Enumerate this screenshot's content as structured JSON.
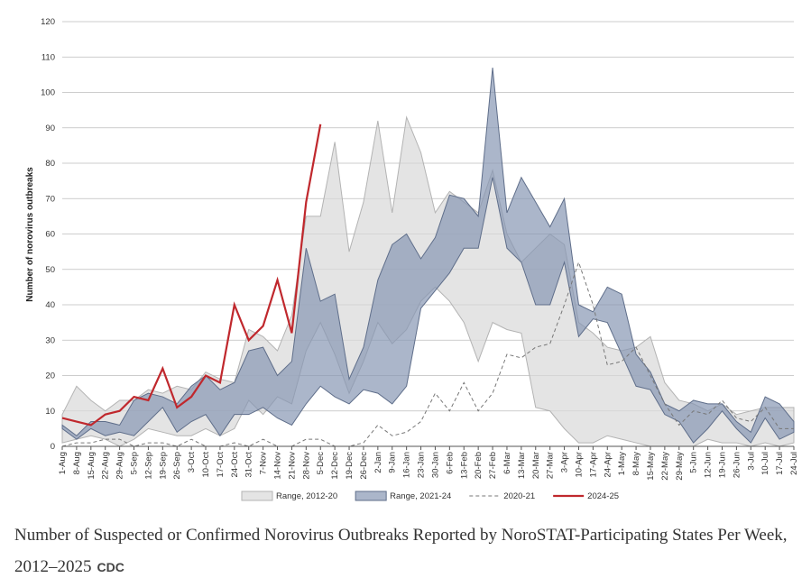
{
  "chart_data": {
    "type": "area-range",
    "ylabel": "Number of norovirus outbreaks",
    "categories": [
      "1-Aug",
      "8-Aug",
      "15-Aug",
      "22-Aug",
      "29-Aug",
      "5-Sep",
      "12-Sep",
      "19-Sep",
      "26-Sep",
      "3-Oct",
      "10-Oct",
      "17-Oct",
      "24-Oct",
      "31-Oct",
      "7-Nov",
      "14-Nov",
      "21-Nov",
      "28-Nov",
      "5-Dec",
      "12-Dec",
      "19-Dec",
      "26-Dec",
      "2-Jan",
      "9-Jan",
      "16-Jan",
      "23-Jan",
      "30-Jan",
      "6-Feb",
      "13-Feb",
      "20-Feb",
      "27-Feb",
      "6-Mar",
      "13-Mar",
      "20-Mar",
      "27-Mar",
      "3-Apr",
      "10-Apr",
      "17-Apr",
      "24-Apr",
      "1-May",
      "8-May",
      "15-May",
      "22-May",
      "29-May",
      "5-Jun",
      "12-Jun",
      "19-Jun",
      "26-Jun",
      "3-Jul",
      "10-Jul",
      "17-Jul",
      "24-Jul"
    ],
    "ylim": [
      0,
      120
    ],
    "yticks": [
      0,
      10,
      20,
      30,
      40,
      50,
      60,
      70,
      80,
      90,
      100,
      110,
      120
    ],
    "grid": true,
    "legend": "bottom",
    "series": [
      {
        "name": "Range, 2012-20",
        "kind": "band",
        "color": "#d9d9d9",
        "edge": "#b3b3b3",
        "low": [
          1,
          2,
          3,
          2,
          0,
          2,
          5,
          4,
          3,
          3,
          5,
          3,
          5,
          13,
          9,
          14,
          12,
          27,
          35,
          26,
          15,
          24,
          35,
          29,
          33,
          41,
          45,
          41,
          35,
          24,
          35,
          33,
          32,
          11,
          10,
          5,
          1,
          1,
          3,
          2,
          1,
          0,
          0,
          0,
          0,
          2,
          1,
          1,
          0,
          1,
          0,
          1
        ],
        "high": [
          9,
          17,
          13,
          10,
          13,
          13,
          16,
          15,
          17,
          16,
          21,
          19,
          18,
          33,
          31,
          27,
          37,
          65,
          65,
          86,
          55,
          69,
          92,
          66,
          93,
          83,
          66,
          72,
          69,
          66,
          78,
          60,
          52,
          56,
          60,
          57,
          35,
          32,
          28,
          27,
          28,
          31,
          18,
          13,
          12,
          10,
          12,
          9,
          10,
          11,
          11,
          11
        ]
      },
      {
        "name": "Range, 2021-24",
        "kind": "band",
        "color": "#8797b4",
        "edge": "#5f6e8a",
        "low": [
          5,
          2,
          5,
          3,
          4,
          3,
          7,
          11,
          4,
          7,
          9,
          3,
          9,
          9,
          11,
          8,
          6,
          12,
          17,
          14,
          12,
          16,
          15,
          12,
          17,
          39,
          44,
          49,
          56,
          56,
          76,
          56,
          52,
          40,
          40,
          52,
          31,
          36,
          35,
          26,
          17,
          16,
          9,
          7,
          1,
          5,
          10,
          5,
          1,
          8,
          2,
          4
        ],
        "high": [
          6,
          3,
          7,
          7,
          6,
          13,
          15,
          14,
          12,
          17,
          20,
          16,
          18,
          27,
          28,
          20,
          24,
          56,
          41,
          43,
          19,
          28,
          47,
          57,
          60,
          53,
          59,
          71,
          70,
          65,
          107,
          66,
          76,
          69,
          62,
          70,
          40,
          38,
          45,
          43,
          26,
          21,
          12,
          10,
          13,
          12,
          12,
          7,
          4,
          14,
          12,
          7
        ]
      },
      {
        "name": "2020-21",
        "kind": "line",
        "dashed": true,
        "color": "#777777",
        "values": [
          0,
          1,
          1,
          2,
          2,
          0,
          1,
          1,
          0,
          2,
          0,
          0,
          1,
          0,
          2,
          0,
          0,
          2,
          2,
          0,
          0,
          1,
          6,
          3,
          4,
          7,
          15,
          10,
          18,
          10,
          15,
          26,
          25,
          28,
          29,
          40,
          52,
          40,
          23,
          24,
          28,
          20,
          12,
          6,
          10,
          9,
          13,
          8,
          7,
          11,
          5,
          5
        ]
      },
      {
        "name": "2024-25",
        "kind": "line",
        "dashed": false,
        "color": "#c0282d",
        "values": [
          8,
          7,
          6,
          9,
          10,
          14,
          13,
          22,
          11,
          14,
          20,
          18,
          40,
          30,
          34,
          47,
          32,
          69,
          91,
          null,
          null,
          null,
          null,
          null,
          null,
          null,
          null,
          null,
          null,
          null,
          null,
          null,
          null,
          null,
          null,
          null,
          null,
          null,
          null,
          null,
          null,
          null,
          null,
          null,
          null,
          null,
          null,
          null,
          null,
          null,
          null,
          null
        ]
      }
    ]
  },
  "caption": "Number of Suspected or Confirmed Norovirus Outbreaks Reported by NoroSTAT-Participating States Per Week, 2012–2025",
  "credit": "CDC"
}
